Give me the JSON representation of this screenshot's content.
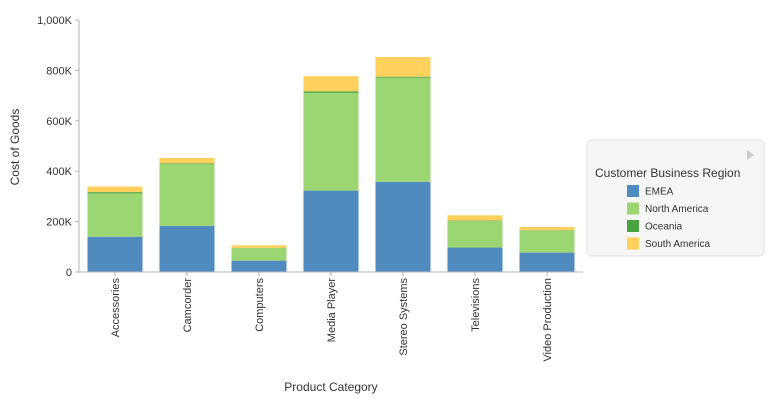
{
  "chart_data": {
    "type": "bar",
    "stacked": true,
    "title": "",
    "xlabel": "Product Category",
    "ylabel": "Cost of Goods",
    "ylim": [
      0,
      1000000
    ],
    "yticks": [
      0,
      200000,
      400000,
      600000,
      800000,
      1000000
    ],
    "ytick_labels": [
      "0",
      "200K",
      "400K",
      "600K",
      "800K",
      "1,000K"
    ],
    "grid": false,
    "categories": [
      "Accessories",
      "Camcorder",
      "Computers",
      "Media Player",
      "Stereo Systems",
      "Televisions",
      "Video Production"
    ],
    "series": [
      {
        "name": "EMEA",
        "color": "#4f8bbf",
        "values": [
          140000,
          183000,
          45000,
          323000,
          358000,
          97000,
          77000
        ]
      },
      {
        "name": "North America",
        "color": "#9cd673",
        "values": [
          172000,
          245000,
          50000,
          388000,
          413000,
          105000,
          88000
        ]
      },
      {
        "name": "Oceania",
        "color": "#4aa23f",
        "values": [
          5000,
          3000,
          1000,
          6000,
          4000,
          2000,
          1000
        ]
      },
      {
        "name": "South America",
        "color": "#ffd05c",
        "values": [
          22000,
          22000,
          10000,
          60000,
          78000,
          21000,
          13000
        ]
      }
    ],
    "legend": {
      "title": "Customer Business Region",
      "position": "right"
    }
  }
}
